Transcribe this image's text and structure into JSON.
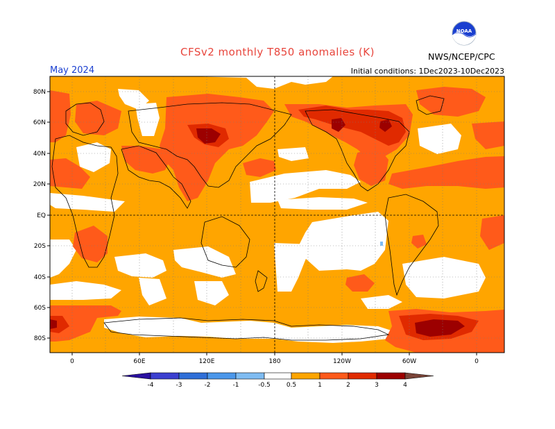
{
  "title": "CFSv2 monthly T850 anomalies (K)",
  "month": "May 2024",
  "initial_conditions": "Initial conditions: 1Dec2023-10Dec2023",
  "agency": "NWS/NCEP/CPC",
  "logo_text": "NOAA",
  "lat_labels": [
    "80N",
    "60N",
    "40N",
    "20N",
    "EQ",
    "20S",
    "40S",
    "60S",
    "80S"
  ],
  "lon_labels": [
    "0",
    "60E",
    "120E",
    "180",
    "120W",
    "60W",
    "0"
  ],
  "colorbar": {
    "ticks": [
      "-4",
      "-3",
      "-2",
      "-1",
      "-0.5",
      "0.5",
      "1",
      "2",
      "3",
      "4"
    ],
    "colors": [
      "#2a10a0",
      "#3b3fd0",
      "#2f6fd8",
      "#4b97ea",
      "#7fbcf2",
      "#ffffff",
      "#ffa500",
      "#ff5a1a",
      "#e02a00",
      "#9c0000",
      "#c49a90",
      "#7a4438"
    ]
  },
  "anomaly_colors": {
    "white": "#ffffff",
    "light": "#ffa500",
    "mid": "#ff5a1a",
    "high": "#e02a00",
    "very_high": "#9c0000"
  }
}
